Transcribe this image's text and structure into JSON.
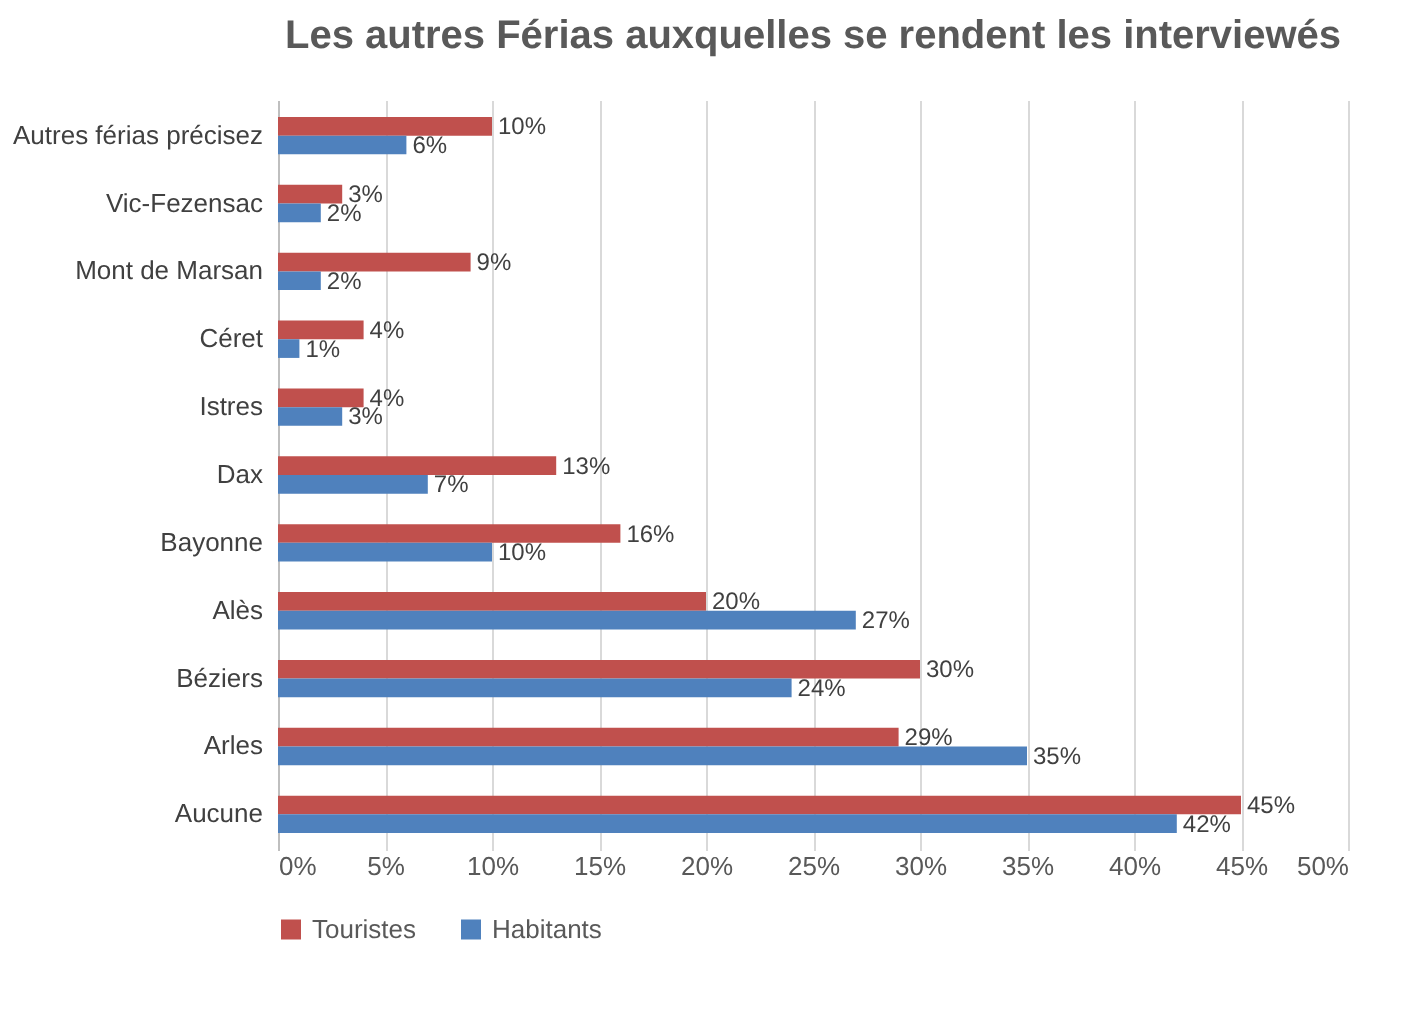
{
  "chart_data": {
    "type": "bar",
    "orientation": "horizontal",
    "title": "Les autres Férias auxquelles se rendent les interviewés",
    "categories": [
      "Autres férias précisez",
      "Vic-Fezensac",
      "Mont de Marsan",
      "Céret",
      "Istres",
      "Dax",
      "Bayonne",
      "Alès",
      "Béziers",
      "Arles",
      "Aucune"
    ],
    "series": [
      {
        "name": "Touristes",
        "color": "#c0504d",
        "values": [
          10,
          3,
          9,
          4,
          4,
          13,
          16,
          20,
          30,
          29,
          45
        ],
        "value_labels": [
          "10%",
          "3%",
          "9%",
          "4%",
          "4%",
          "13%",
          "16%",
          "20%",
          "30%",
          "29%",
          "45%"
        ]
      },
      {
        "name": "Habitants",
        "color": "#4f81bd",
        "values": [
          6,
          2,
          2,
          1,
          3,
          7,
          10,
          27,
          24,
          35,
          42
        ],
        "value_labels": [
          "6%",
          "2%",
          "2%",
          "1%",
          "3%",
          "7%",
          "10%",
          "27%",
          "24%",
          "35%",
          "42%"
        ]
      }
    ],
    "xlim": [
      0,
      50
    ],
    "xticks": [
      {
        "value": 0,
        "label": "0%"
      },
      {
        "value": 5,
        "label": "5%"
      },
      {
        "value": 10,
        "label": "10%"
      },
      {
        "value": 15,
        "label": "15%"
      },
      {
        "value": 20,
        "label": "20%"
      },
      {
        "value": 25,
        "label": "25%"
      },
      {
        "value": 30,
        "label": "30%"
      },
      {
        "value": 35,
        "label": "35%"
      },
      {
        "value": 40,
        "label": "40%"
      },
      {
        "value": 45,
        "label": "45%"
      },
      {
        "value": 50,
        "label": "50%"
      }
    ],
    "grid": "x",
    "legend": "bottom"
  }
}
